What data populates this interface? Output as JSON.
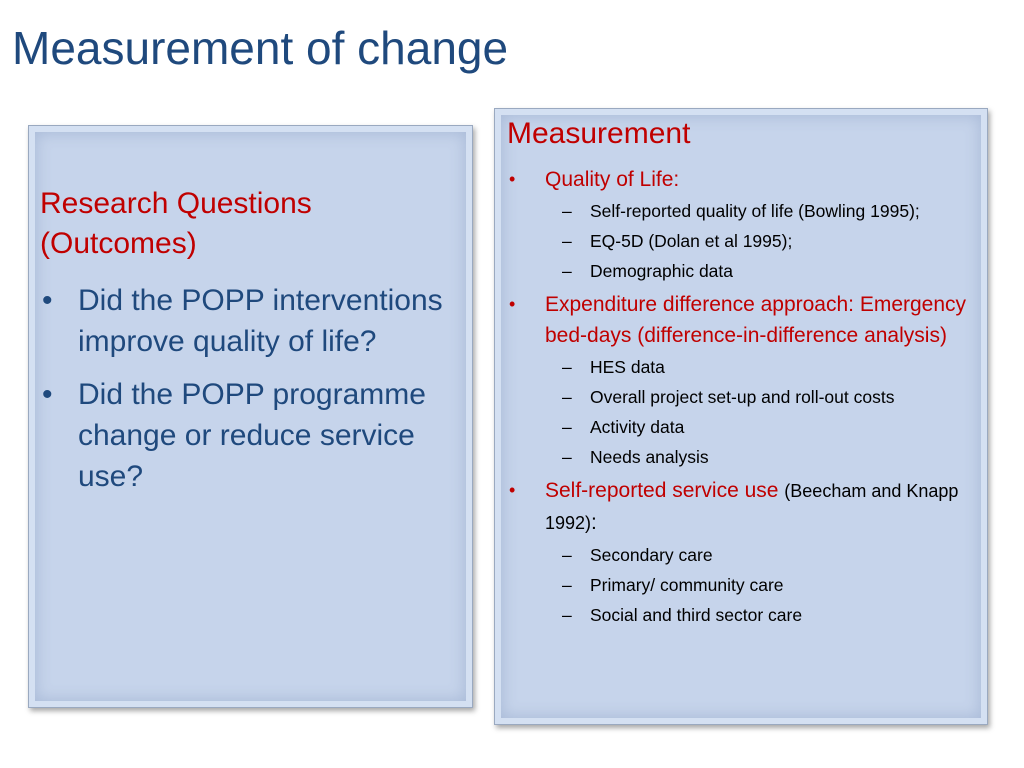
{
  "slide": {
    "title": "Measurement of change"
  },
  "left_panel": {
    "heading": "Research Questions (Outcomes)",
    "bullet_symbol": "•",
    "items": [
      "Did the POPP interventions improve quality of life?",
      "Did the POPP programme change or reduce service use?"
    ]
  },
  "right_panel": {
    "heading": "Measurement",
    "bullet_symbol": "•",
    "dash_symbol": "–",
    "items": [
      {
        "label": "Quality of Life:",
        "subitems": [
          "Self-reported quality of life (Bowling 1995);",
          "EQ-5D (Dolan et al 1995);",
          "Demographic data"
        ]
      },
      {
        "label": "Expenditure difference approach: Emergency bed-days (difference-in-difference analysis)",
        "subitems": [
          "HES data",
          "Overall project set-up and roll-out costs",
          "Activity data",
          "Needs analysis"
        ]
      },
      {
        "label": "Self-reported service use",
        "citation": "(Beecham and Knapp 1992)",
        "suffix": ":",
        "subitems": [
          "Secondary care",
          "Primary/ community care",
          "Social and third sector care"
        ]
      }
    ]
  },
  "colors": {
    "title": "#1f497d",
    "heading_red": "#c00000",
    "question_blue": "#1f497d",
    "panel_fill": "#c6d4eb"
  }
}
